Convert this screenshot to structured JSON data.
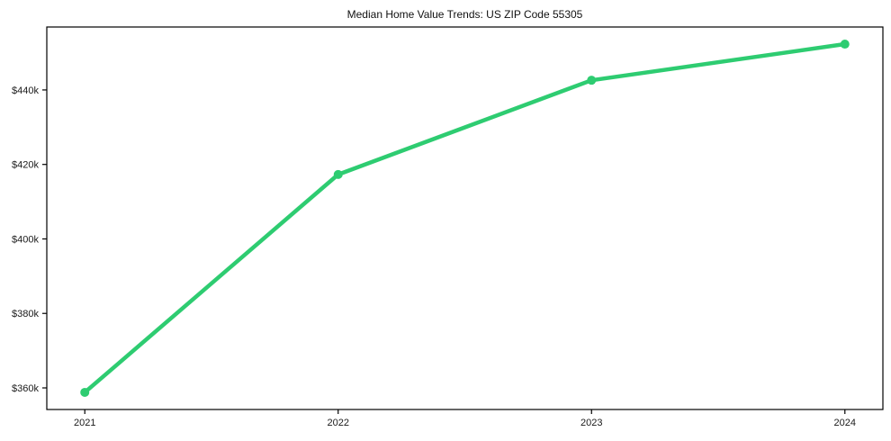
{
  "page": {
    "background_color": "#ffffff"
  },
  "chart_data": {
    "type": "line",
    "title": "Median Home Value Trends: US ZIP Code 55305",
    "xlabel": "",
    "ylabel": "",
    "x": [
      2021,
      2022,
      2023,
      2024
    ],
    "x_tick_labels": [
      "2021",
      "2022",
      "2023",
      "2024"
    ],
    "series": [
      {
        "name": "median-home-value",
        "values": [
          358800,
          417300,
          442600,
          452300
        ],
        "color": "#2ecc71",
        "marker": "circle"
      }
    ],
    "y_ticks": [
      360000,
      380000,
      400000,
      420000,
      440000
    ],
    "y_tick_labels": [
      "$360k",
      "$380k",
      "$400k",
      "$420k",
      "$440k"
    ],
    "xlim": [
      2020.85,
      2024.15
    ],
    "ylim": [
      354200,
      456900
    ],
    "grid": false,
    "legend": "none",
    "axis_color": "#000000",
    "tick_label_color": "#1a1a1a"
  }
}
